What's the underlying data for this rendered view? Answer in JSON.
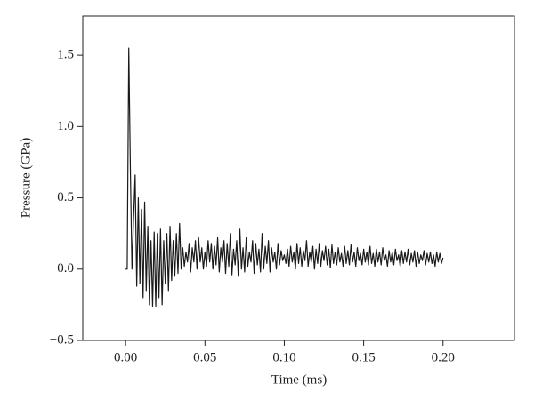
{
  "chart_data": {
    "type": "line",
    "xlabel": "Time (ms)",
    "ylabel": "Pressure (GPa)",
    "color": "#1a1a1a",
    "xlim": [
      -0.027,
      0.245
    ],
    "ylim": [
      -0.5,
      1.775
    ],
    "xticks": [
      {
        "value": 0,
        "label": "0.00"
      },
      {
        "value": 0.05,
        "label": "0.05"
      },
      {
        "value": 0.1,
        "label": "0.10"
      },
      {
        "value": 0.15,
        "label": "0.15"
      },
      {
        "value": 0.2,
        "label": "0.20"
      }
    ],
    "yticks": [
      {
        "value": -0.5,
        "label": "−0.5"
      },
      {
        "value": 0,
        "label": "0.0"
      },
      {
        "value": 0.5,
        "label": "0.5"
      },
      {
        "value": 1,
        "label": "1.0"
      },
      {
        "value": 1.5,
        "label": "1.5"
      }
    ],
    "x": [
      0,
      0.001,
      0.002,
      0.003,
      0.004,
      0.005,
      0.006,
      0.007,
      0.008,
      0.009,
      0.01,
      0.011,
      0.012,
      0.013,
      0.014,
      0.015,
      0.016,
      0.017,
      0.018,
      0.019,
      0.02,
      0.021,
      0.022,
      0.023,
      0.024,
      0.025,
      0.026,
      0.027,
      0.028,
      0.029,
      0.03,
      0.031,
      0.032,
      0.033,
      0.034,
      0.035,
      0.036,
      0.037,
      0.038,
      0.039,
      0.04,
      0.041,
      0.042,
      0.043,
      0.044,
      0.045,
      0.046,
      0.047,
      0.048,
      0.049,
      0.05,
      0.051,
      0.052,
      0.053,
      0.054,
      0.055,
      0.056,
      0.057,
      0.058,
      0.059,
      0.06,
      0.061,
      0.062,
      0.063,
      0.064,
      0.065,
      0.066,
      0.067,
      0.068,
      0.069,
      0.07,
      0.071,
      0.072,
      0.073,
      0.074,
      0.075,
      0.076,
      0.077,
      0.078,
      0.079,
      0.08,
      0.081,
      0.082,
      0.083,
      0.084,
      0.085,
      0.086,
      0.087,
      0.088,
      0.089,
      0.09,
      0.091,
      0.092,
      0.093,
      0.094,
      0.095,
      0.096,
      0.097,
      0.098,
      0.099,
      0.1,
      0.101,
      0.102,
      0.103,
      0.104,
      0.105,
      0.106,
      0.107,
      0.108,
      0.109,
      0.11,
      0.111,
      0.112,
      0.113,
      0.114,
      0.115,
      0.116,
      0.117,
      0.118,
      0.119,
      0.12,
      0.121,
      0.122,
      0.123,
      0.124,
      0.125,
      0.126,
      0.127,
      0.128,
      0.129,
      0.13,
      0.131,
      0.132,
      0.133,
      0.134,
      0.135,
      0.136,
      0.137,
      0.138,
      0.139,
      0.14,
      0.141,
      0.142,
      0.143,
      0.144,
      0.145,
      0.146,
      0.147,
      0.148,
      0.149,
      0.15,
      0.151,
      0.152,
      0.153,
      0.154,
      0.155,
      0.156,
      0.157,
      0.158,
      0.159,
      0.16,
      0.161,
      0.162,
      0.163,
      0.164,
      0.165,
      0.166,
      0.167,
      0.168,
      0.169,
      0.17,
      0.171,
      0.172,
      0.173,
      0.174,
      0.175,
      0.176,
      0.177,
      0.178,
      0.179,
      0.18,
      0.181,
      0.182,
      0.183,
      0.184,
      0.185,
      0.186,
      0.187,
      0.188,
      0.189,
      0.19,
      0.191,
      0.192,
      0.193,
      0.194,
      0.195,
      0.196,
      0.197,
      0.198,
      0.199,
      0.2
    ],
    "values": [
      0,
      0,
      1.55,
      0.7,
      0,
      0.35,
      0.66,
      -0.12,
      0.5,
      -0.1,
      0.42,
      -0.2,
      0.47,
      -0.15,
      0.3,
      -0.25,
      0.2,
      -0.26,
      0.26,
      -0.26,
      0.25,
      -0.2,
      0.28,
      -0.25,
      0.2,
      -0.1,
      0.25,
      -0.15,
      0.3,
      -0.08,
      0.2,
      -0.05,
      0.25,
      -0.03,
      0.32,
      0,
      0.15,
      0.02,
      0.12,
      0.05,
      0.18,
      -0.02,
      0.15,
      0.05,
      0.2,
      0,
      0.22,
      0.05,
      0.15,
      0,
      0.12,
      0.02,
      0.2,
      0.05,
      0.18,
      0,
      0.16,
      0.03,
      0.22,
      -0.02,
      0.15,
      0.05,
      0.2,
      -0.03,
      0.18,
      0.02,
      0.25,
      -0.04,
      0.14,
      0.03,
      0.2,
      -0.05,
      0.28,
      0,
      0.15,
      -0.02,
      0.22,
      0.02,
      0.12,
      0.05,
      0.2,
      -0.03,
      0.18,
      0.03,
      0.14,
      -0.02,
      0.25,
      0,
      0.16,
      0.04,
      0.2,
      -0.02,
      0.15,
      0.05,
      0.12,
      0,
      0.18,
      0.03,
      0.13,
      0.06,
      0.1,
      0.04,
      0.14,
      0.02,
      0.16,
      0.05,
      0.12,
      0,
      0.18,
      0.04,
      0.15,
      0.02,
      0.13,
      0.06,
      0.2,
      0.02,
      0.12,
      0.05,
      0.16,
      0,
      0.14,
      0.04,
      0.18,
      0.02,
      0.13,
      0.06,
      0.16,
      0.03,
      0.14,
      0.01,
      0.17,
      0.04,
      0.12,
      0.03,
      0.15,
      0.05,
      0.11,
      0.02,
      0.16,
      0.04,
      0.13,
      0.03,
      0.17,
      0.05,
      0.12,
      0.02,
      0.15,
      0.06,
      0.11,
      0.03,
      0.14,
      0.05,
      0.12,
      0.03,
      0.16,
      0.04,
      0.11,
      0.02,
      0.14,
      0.05,
      0.12,
      0.03,
      0.15,
      0.06,
      0.1,
      0.02,
      0.13,
      0.05,
      0.12,
      0.03,
      0.14,
      0.06,
      0.1,
      0.02,
      0.13,
      0.04,
      0.12,
      0.05,
      0.14,
      0.03,
      0.11,
      0.05,
      0.13,
      0.02,
      0.12,
      0.04,
      0.1,
      0.06,
      0.13,
      0.03,
      0.11,
      0.05,
      0.12,
      0.04,
      0.1,
      0.02,
      0.12,
      0.05,
      0.11,
      0.04,
      0.08
    ]
  }
}
